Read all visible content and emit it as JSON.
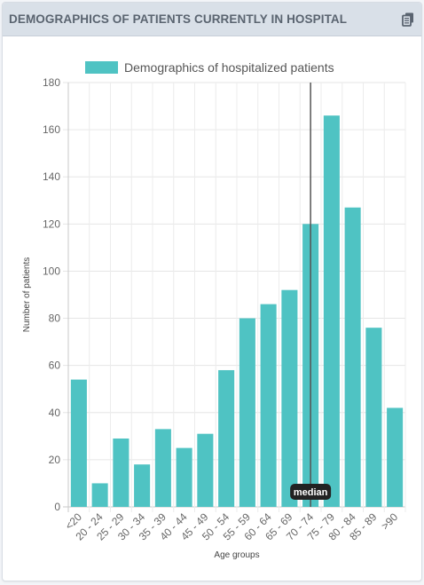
{
  "card": {
    "title": "DEMOGRAPHICS OF PATIENTS CURRENTLY IN HOSPITAL",
    "copy_icon": "copy-icon"
  },
  "colors": {
    "bar": "#4fc3c3",
    "header_bg": "#d9e0e8",
    "title_text": "#5a6470",
    "median_line": "#555555",
    "median_tag_bg": "#222222"
  },
  "chart_data": {
    "type": "bar",
    "legend": "Demographics of hospitalized patients",
    "legend_position": "top",
    "xlabel": "Age groups",
    "ylabel": "Number of patients",
    "ylim": [
      0,
      180
    ],
    "yticks": [
      0,
      20,
      40,
      60,
      80,
      100,
      120,
      140,
      160,
      180
    ],
    "grid": true,
    "categories": [
      "<20",
      "20 - 24",
      "25 - 29",
      "30 - 34",
      "35 - 39",
      "40 - 44",
      "45 - 49",
      "50 - 54",
      "55 - 59",
      "60 - 64",
      "65 - 69",
      "70 - 74",
      "75 - 79",
      "80 - 84",
      "85 - 89",
      ">90"
    ],
    "values": [
      54,
      10,
      29,
      18,
      33,
      25,
      31,
      58,
      80,
      86,
      92,
      120,
      166,
      127,
      76,
      42
    ],
    "annotation": {
      "label": "median",
      "category": "70 - 74"
    }
  }
}
